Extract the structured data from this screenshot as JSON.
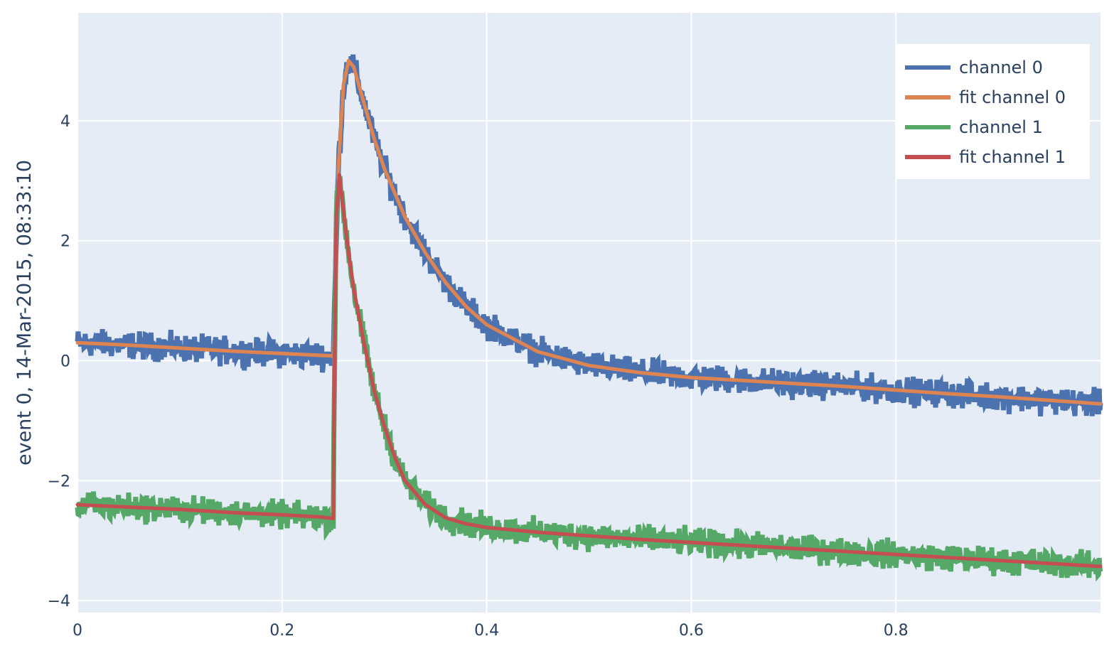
{
  "chart_data": {
    "type": "line",
    "title": "",
    "xlabel": "",
    "ylabel": "event 0, 14-Mar-2015, 08:33:10",
    "xlim": [
      0,
      1
    ],
    "ylim": [
      -4.2,
      5.8
    ],
    "x_ticks": [
      0,
      0.2,
      0.4,
      0.6,
      0.8
    ],
    "x_tick_labels": [
      "0",
      "0.2",
      "0.4",
      "0.6",
      "0.8"
    ],
    "y_ticks": [
      -4,
      -2,
      0,
      2,
      4
    ],
    "y_tick_labels": [
      "−4",
      "−2",
      "0",
      "2",
      "4"
    ],
    "grid": true,
    "legend_position": "top-right",
    "plot_background": "#e5ecf6",
    "series": [
      {
        "name": "channel 0",
        "color": "#4c72b0",
        "kind": "noisy-data",
        "x": [
          0,
          0.05,
          0.1,
          0.15,
          0.2,
          0.248,
          0.25,
          0.255,
          0.26,
          0.265,
          0.27,
          0.28,
          0.29,
          0.3,
          0.32,
          0.34,
          0.36,
          0.38,
          0.4,
          0.45,
          0.5,
          0.55,
          0.6,
          0.65,
          0.7,
          0.75,
          0.8,
          0.85,
          0.9,
          0.95,
          1.0
        ],
        "y": [
          0.3,
          0.26,
          0.21,
          0.16,
          0.12,
          0.08,
          0.07,
          3.2,
          4.6,
          5.0,
          4.9,
          4.3,
          3.7,
          3.2,
          2.4,
          1.8,
          1.3,
          0.9,
          0.6,
          0.15,
          -0.08,
          -0.2,
          -0.28,
          -0.33,
          -0.38,
          -0.43,
          -0.49,
          -0.55,
          -0.6,
          -0.66,
          -0.72
        ]
      },
      {
        "name": "fit channel 0",
        "color": "#dd8452",
        "kind": "fit",
        "x": [
          0,
          0.05,
          0.1,
          0.15,
          0.2,
          0.248,
          0.25,
          0.255,
          0.26,
          0.265,
          0.27,
          0.28,
          0.29,
          0.3,
          0.32,
          0.34,
          0.36,
          0.38,
          0.4,
          0.45,
          0.5,
          0.55,
          0.6,
          0.65,
          0.7,
          0.75,
          0.8,
          0.85,
          0.9,
          0.95,
          1.0
        ],
        "y": [
          0.3,
          0.26,
          0.21,
          0.16,
          0.12,
          0.08,
          0.07,
          3.2,
          4.6,
          5.0,
          4.9,
          4.3,
          3.7,
          3.2,
          2.4,
          1.8,
          1.3,
          0.9,
          0.6,
          0.15,
          -0.08,
          -0.2,
          -0.28,
          -0.33,
          -0.38,
          -0.43,
          -0.49,
          -0.55,
          -0.6,
          -0.66,
          -0.72
        ]
      },
      {
        "name": "channel 1",
        "color": "#55a868",
        "kind": "noisy-data",
        "x": [
          0,
          0.05,
          0.1,
          0.15,
          0.2,
          0.24,
          0.25,
          0.251,
          0.253,
          0.256,
          0.26,
          0.265,
          0.27,
          0.28,
          0.29,
          0.3,
          0.31,
          0.32,
          0.34,
          0.36,
          0.38,
          0.4,
          0.45,
          0.5,
          0.55,
          0.6,
          0.65,
          0.7,
          0.75,
          0.8,
          0.85,
          0.9,
          0.95,
          1.0
        ],
        "y": [
          -2.4,
          -2.44,
          -2.48,
          -2.53,
          -2.57,
          -2.61,
          -2.63,
          -0.5,
          2.4,
          3.1,
          2.5,
          1.8,
          1.2,
          0.3,
          -0.5,
          -1.1,
          -1.6,
          -2.0,
          -2.4,
          -2.62,
          -2.72,
          -2.78,
          -2.86,
          -2.92,
          -2.98,
          -3.03,
          -3.08,
          -3.13,
          -3.18,
          -3.23,
          -3.28,
          -3.33,
          -3.38,
          -3.43
        ]
      },
      {
        "name": "fit channel 1",
        "color": "#c44e52",
        "kind": "fit",
        "x": [
          0,
          0.05,
          0.1,
          0.15,
          0.2,
          0.24,
          0.25,
          0.251,
          0.253,
          0.256,
          0.26,
          0.265,
          0.27,
          0.28,
          0.29,
          0.3,
          0.31,
          0.32,
          0.34,
          0.36,
          0.38,
          0.4,
          0.45,
          0.5,
          0.55,
          0.6,
          0.65,
          0.7,
          0.75,
          0.8,
          0.85,
          0.9,
          0.95,
          1.0
        ],
        "y": [
          -2.4,
          -2.44,
          -2.48,
          -2.53,
          -2.57,
          -2.61,
          -2.63,
          -0.5,
          2.4,
          3.1,
          2.5,
          1.8,
          1.2,
          0.3,
          -0.5,
          -1.1,
          -1.6,
          -2.0,
          -2.4,
          -2.62,
          -2.72,
          -2.78,
          -2.86,
          -2.92,
          -2.98,
          -3.03,
          -3.08,
          -3.13,
          -3.18,
          -3.23,
          -3.28,
          -3.33,
          -3.38,
          -3.43
        ]
      }
    ]
  }
}
